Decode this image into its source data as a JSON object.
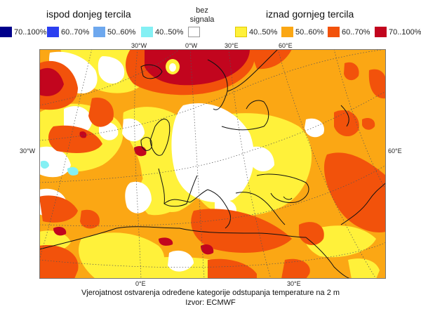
{
  "legend": {
    "below": {
      "title": "ispod donjeg tercila",
      "items": [
        {
          "label": "70..100%",
          "color": "#00008b"
        },
        {
          "label": "60..70%",
          "color": "#2b3ff0"
        },
        {
          "label": "50..60%",
          "color": "#6ea8ee"
        },
        {
          "label": "40..50%",
          "color": "#84f0f4"
        }
      ]
    },
    "no_signal": {
      "label_line1": "bez",
      "label_line2": "signala",
      "color": "#ffffff"
    },
    "above": {
      "title": "iznad gornjeg tercila",
      "items": [
        {
          "label": "40..50%",
          "color": "#fff13a"
        },
        {
          "label": "50..60%",
          "color": "#fba714"
        },
        {
          "label": "60..70%",
          "color": "#f2520b"
        },
        {
          "label": "70..100%",
          "color": "#c2051e"
        }
      ]
    }
  },
  "map": {
    "top_labels": [
      "30°W",
      "0°W",
      "30°E",
      "60°E"
    ],
    "left_label": "30°W",
    "right_label": "60°E",
    "bottom_labels": [
      "0°E",
      "30°E"
    ]
  },
  "caption": {
    "line1": "Vjerojatnost ostvarenja određene kategorije odstupanja temperature na 2 m",
    "line2": "Izvor: ECMWF"
  }
}
